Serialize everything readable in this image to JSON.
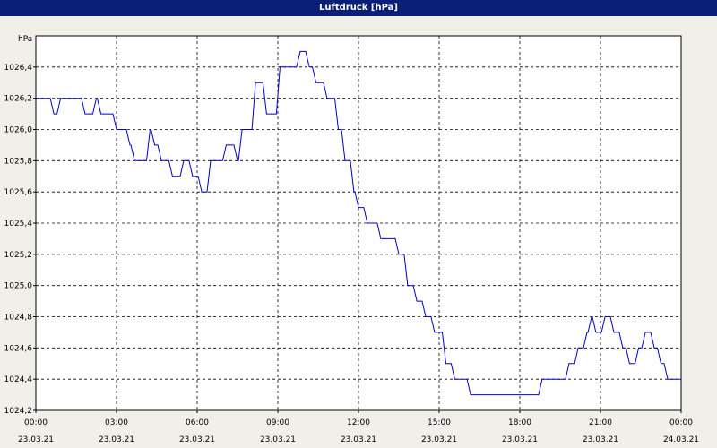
{
  "window": {
    "title": "Luftdruck [hPa]"
  },
  "chart_data": {
    "type": "line",
    "title": "Luftdruck [hPa]",
    "ylabel": "hPa",
    "xlabel": "",
    "ylim": [
      1024.2,
      1026.6
    ],
    "y_ticks": [
      "1024,2",
      "1024,4",
      "1024,6",
      "1024,8",
      "1025,0",
      "1025,2",
      "1025,4",
      "1025,6",
      "1025,8",
      "1026,0",
      "1026,2",
      "1026,4"
    ],
    "y_tick_values": [
      1024.2,
      1024.4,
      1024.6,
      1024.8,
      1025.0,
      1025.2,
      1025.4,
      1025.6,
      1025.8,
      1026.0,
      1026.2,
      1026.4
    ],
    "x_ticks": [
      {
        "time": "00:00",
        "date": "23.03.21"
      },
      {
        "time": "03:00",
        "date": "23.03.21"
      },
      {
        "time": "06:00",
        "date": "23.03.21"
      },
      {
        "time": "09:00",
        "date": "23.03.21"
      },
      {
        "time": "12:00",
        "date": "23.03.21"
      },
      {
        "time": "15:00",
        "date": "23.03.21"
      },
      {
        "time": "18:00",
        "date": "23.03.21"
      },
      {
        "time": "21:00",
        "date": "23.03.21"
      },
      {
        "time": "00:00",
        "date": "24.03.21"
      }
    ],
    "grid": true,
    "colors": {
      "line": "#0000c8",
      "grid": "#000000",
      "background": "#ffffff",
      "frame": "#f1efe9"
    },
    "series": [
      {
        "x_hours": [
          0,
          0.5,
          0.67,
          0.92,
          1.67,
          1.83,
          2.25,
          2.42,
          2.67,
          3.0,
          3.25,
          3.5,
          3.67,
          3.92,
          4.25,
          4.42,
          4.67,
          4.83,
          5.08,
          5.5,
          5.83,
          6.17,
          6.5,
          6.83,
          7.08,
          7.5,
          7.67,
          7.92,
          8.17,
          8.58,
          8.83,
          9.08,
          9.42,
          9.83,
          10.17,
          10.42,
          10.83,
          11.25,
          11.5,
          11.83,
          12.0,
          12.33,
          12.5,
          12.83,
          13.5,
          13.83,
          14.17,
          14.5,
          14.83,
          15.25,
          15.58,
          15.83,
          16.17,
          16.5,
          16.83,
          18.0,
          18.83,
          19.17,
          19.83,
          20.17,
          20.5,
          20.67,
          20.83,
          21.17,
          21.5,
          21.83,
          22.08,
          22.42,
          22.67,
          23.0,
          23.25,
          23.5,
          24.0
        ],
        "values": [
          1026.2,
          1026.2,
          1026.1,
          1026.2,
          1026.2,
          1026.1,
          1026.2,
          1026.1,
          1026.1,
          1026.0,
          1026.0,
          1025.9,
          1025.8,
          1025.8,
          1026.0,
          1025.9,
          1025.8,
          1025.8,
          1025.7,
          1025.8,
          1025.7,
          1025.6,
          1025.8,
          1025.8,
          1025.9,
          1025.8,
          1026.0,
          1026.0,
          1026.3,
          1026.1,
          1026.1,
          1026.4,
          1026.4,
          1026.5,
          1026.4,
          1026.3,
          1026.2,
          1026.0,
          1025.8,
          1025.6,
          1025.5,
          1025.4,
          1025.4,
          1025.3,
          1025.2,
          1025.0,
          1024.9,
          1024.8,
          1024.7,
          1024.5,
          1024.4,
          1024.4,
          1024.3,
          1024.3,
          1024.3,
          1024.3,
          1024.4,
          1024.4,
          1024.5,
          1024.6,
          1024.7,
          1024.8,
          1024.7,
          1024.8,
          1024.7,
          1024.6,
          1024.5,
          1024.6,
          1024.7,
          1024.6,
          1024.5,
          1024.4,
          1024.4
        ]
      }
    ]
  }
}
